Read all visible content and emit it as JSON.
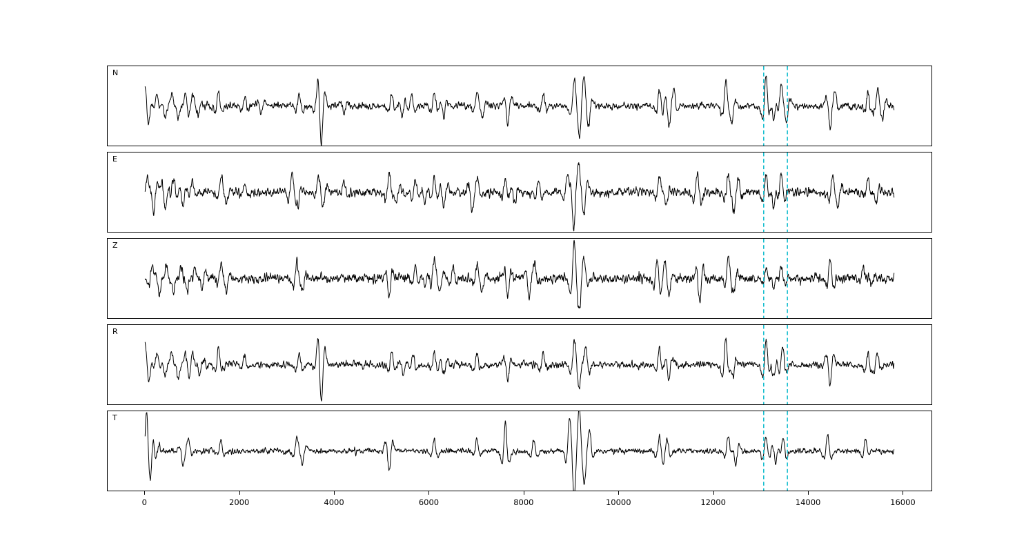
{
  "figure_title": "",
  "chart_data": {
    "type": "line",
    "title": "",
    "xlabel": "",
    "ylabel": "",
    "description": "Five stacked seismogram component traces (N, E, Z, R, T) sharing one x axis in samples, with two dashed cyan vertical marker lines bracketing an event window.",
    "xlim": [
      -790,
      16590
    ],
    "x_sample_range": [
      0,
      15800
    ],
    "xticks": [
      0,
      2000,
      4000,
      6000,
      8000,
      10000,
      12000,
      14000,
      16000
    ],
    "grid": false,
    "legend": "none",
    "trace_color": "#000000",
    "vlines": {
      "positions": [
        13050,
        13550
      ],
      "style": "dashed",
      "color": "#17becf"
    },
    "panels": [
      {
        "label": "N",
        "noise_amp": 0.09,
        "spikes": [
          [
            0,
            0.45
          ],
          [
            70,
            -0.3
          ],
          [
            250,
            0.3
          ],
          [
            420,
            -0.28
          ],
          [
            560,
            0.32
          ],
          [
            700,
            -0.3
          ],
          [
            850,
            0.35
          ],
          [
            1000,
            0.3
          ],
          [
            1120,
            -0.25
          ],
          [
            1550,
            0.42
          ],
          [
            2100,
            0.25
          ],
          [
            2450,
            -0.2
          ],
          [
            3250,
            0.3
          ],
          [
            3640,
            0.3
          ],
          [
            3720,
            -0.95
          ],
          [
            4200,
            -0.25
          ],
          [
            5200,
            0.35
          ],
          [
            5420,
            -0.3
          ],
          [
            5620,
            0.3
          ],
          [
            6100,
            0.35
          ],
          [
            6300,
            -0.3
          ],
          [
            7000,
            0.3
          ],
          [
            7120,
            -0.25
          ],
          [
            7650,
            -0.45
          ],
          [
            8400,
            0.3
          ],
          [
            9050,
            0.55
          ],
          [
            9160,
            -0.6
          ],
          [
            9260,
            0.5
          ],
          [
            9360,
            -0.4
          ],
          [
            10850,
            0.4
          ],
          [
            11050,
            -0.45
          ],
          [
            11160,
            0.35
          ],
          [
            12250,
            0.68
          ],
          [
            12380,
            -0.4
          ],
          [
            13100,
            0.75
          ],
          [
            13260,
            -0.35
          ],
          [
            13420,
            0.55
          ],
          [
            13540,
            -0.3
          ],
          [
            14450,
            -0.55
          ],
          [
            14560,
            0.3
          ],
          [
            15250,
            0.35
          ],
          [
            15450,
            0.4
          ],
          [
            15560,
            -0.3
          ]
        ]
      },
      {
        "label": "E",
        "noise_amp": 0.11,
        "spikes": [
          [
            40,
            0.4
          ],
          [
            180,
            -0.5
          ],
          [
            430,
            -0.45
          ],
          [
            600,
            0.35
          ],
          [
            800,
            -0.4
          ],
          [
            1000,
            0.3
          ],
          [
            1600,
            0.35
          ],
          [
            1720,
            -0.3
          ],
          [
            2100,
            0.25
          ],
          [
            3100,
            0.5
          ],
          [
            3220,
            -0.3
          ],
          [
            3650,
            0.35
          ],
          [
            3760,
            -0.3
          ],
          [
            4200,
            0.25
          ],
          [
            5150,
            0.55
          ],
          [
            5300,
            -0.3
          ],
          [
            5700,
            0.35
          ],
          [
            5900,
            -0.3
          ],
          [
            6100,
            0.4
          ],
          [
            6300,
            -0.35
          ],
          [
            6900,
            -0.5
          ],
          [
            7020,
            0.3
          ],
          [
            7600,
            0.35
          ],
          [
            7800,
            -0.3
          ],
          [
            8300,
            0.35
          ],
          [
            8900,
            0.45
          ],
          [
            9040,
            -0.85
          ],
          [
            9150,
            0.5
          ],
          [
            9260,
            -0.5
          ],
          [
            10850,
            0.4
          ],
          [
            11000,
            -0.35
          ],
          [
            11650,
            0.5
          ],
          [
            12300,
            0.45
          ],
          [
            12420,
            -0.35
          ],
          [
            12520,
            0.3
          ],
          [
            13100,
            0.5
          ],
          [
            13260,
            -0.35
          ],
          [
            13420,
            0.45
          ],
          [
            14500,
            0.45
          ],
          [
            14620,
            -0.3
          ],
          [
            15250,
            0.35
          ],
          [
            15420,
            -0.3
          ]
        ]
      },
      {
        "label": "Z",
        "noise_amp": 0.12,
        "spikes": [
          [
            150,
            0.3
          ],
          [
            300,
            -0.35
          ],
          [
            450,
            0.35
          ],
          [
            600,
            -0.3
          ],
          [
            760,
            0.35
          ],
          [
            900,
            -0.3
          ],
          [
            1050,
            0.3
          ],
          [
            1200,
            -0.25
          ],
          [
            1600,
            0.35
          ],
          [
            1720,
            -0.3
          ],
          [
            3200,
            0.4
          ],
          [
            3320,
            -0.3
          ],
          [
            5150,
            -0.5
          ],
          [
            5700,
            0.3
          ],
          [
            5900,
            -0.25
          ],
          [
            6100,
            0.5
          ],
          [
            6220,
            -0.3
          ],
          [
            6500,
            0.3
          ],
          [
            7000,
            0.35
          ],
          [
            7120,
            -0.3
          ],
          [
            7650,
            -0.5
          ],
          [
            8100,
            -0.45
          ],
          [
            8220,
            0.3
          ],
          [
            9050,
            0.85
          ],
          [
            9160,
            -0.6
          ],
          [
            9270,
            0.4
          ],
          [
            10800,
            0.55
          ],
          [
            10960,
            0.35
          ],
          [
            11060,
            -0.3
          ],
          [
            11700,
            -0.6
          ],
          [
            12300,
            0.5
          ],
          [
            12420,
            -0.3
          ],
          [
            13100,
            0.35
          ],
          [
            13260,
            -0.3
          ],
          [
            13420,
            0.35
          ],
          [
            14450,
            0.6
          ],
          [
            15150,
            0.3
          ],
          [
            15320,
            -0.25
          ]
        ]
      },
      {
        "label": "R",
        "noise_amp": 0.09,
        "spikes": [
          [
            0,
            0.4
          ],
          [
            80,
            -0.3
          ],
          [
            250,
            0.32
          ],
          [
            420,
            -0.3
          ],
          [
            560,
            0.3
          ],
          [
            700,
            -0.32
          ],
          [
            850,
            0.35
          ],
          [
            1000,
            0.3
          ],
          [
            1150,
            -0.25
          ],
          [
            1550,
            0.4
          ],
          [
            2100,
            0.25
          ],
          [
            3250,
            0.3
          ],
          [
            3640,
            0.3
          ],
          [
            3720,
            -0.9
          ],
          [
            5200,
            0.35
          ],
          [
            5450,
            -0.3
          ],
          [
            5650,
            0.3
          ],
          [
            6100,
            0.35
          ],
          [
            6300,
            -0.3
          ],
          [
            7000,
            0.3
          ],
          [
            7650,
            -0.4
          ],
          [
            8400,
            0.3
          ],
          [
            9050,
            0.5
          ],
          [
            9160,
            -0.55
          ],
          [
            9300,
            0.45
          ],
          [
            10850,
            0.4
          ],
          [
            11050,
            -0.4
          ],
          [
            12250,
            0.7
          ],
          [
            12400,
            -0.35
          ],
          [
            13100,
            0.65
          ],
          [
            13260,
            -0.35
          ],
          [
            13450,
            0.5
          ],
          [
            14450,
            -0.55
          ],
          [
            15250,
            0.3
          ],
          [
            15450,
            0.35
          ]
        ]
      },
      {
        "label": "T",
        "noise_amp": 0.07,
        "spikes": [
          [
            30,
            0.8
          ],
          [
            110,
            -0.5
          ],
          [
            220,
            -0.3
          ],
          [
            800,
            -0.35
          ],
          [
            920,
            0.3
          ],
          [
            1600,
            0.3
          ],
          [
            3200,
            0.35
          ],
          [
            3320,
            -0.3
          ],
          [
            5150,
            -0.5
          ],
          [
            6100,
            0.3
          ],
          [
            7000,
            0.3
          ],
          [
            7600,
            0.75
          ],
          [
            8200,
            0.35
          ],
          [
            8950,
            0.6
          ],
          [
            9050,
            -0.9
          ],
          [
            9160,
            0.85
          ],
          [
            9270,
            -0.6
          ],
          [
            9380,
            0.4
          ],
          [
            10850,
            0.4
          ],
          [
            11010,
            0.35
          ],
          [
            12300,
            0.4
          ],
          [
            12460,
            -0.35
          ],
          [
            13100,
            0.4
          ],
          [
            13300,
            -0.3
          ],
          [
            13460,
            0.35
          ],
          [
            14400,
            0.45
          ],
          [
            15200,
            0.3
          ]
        ]
      }
    ]
  }
}
